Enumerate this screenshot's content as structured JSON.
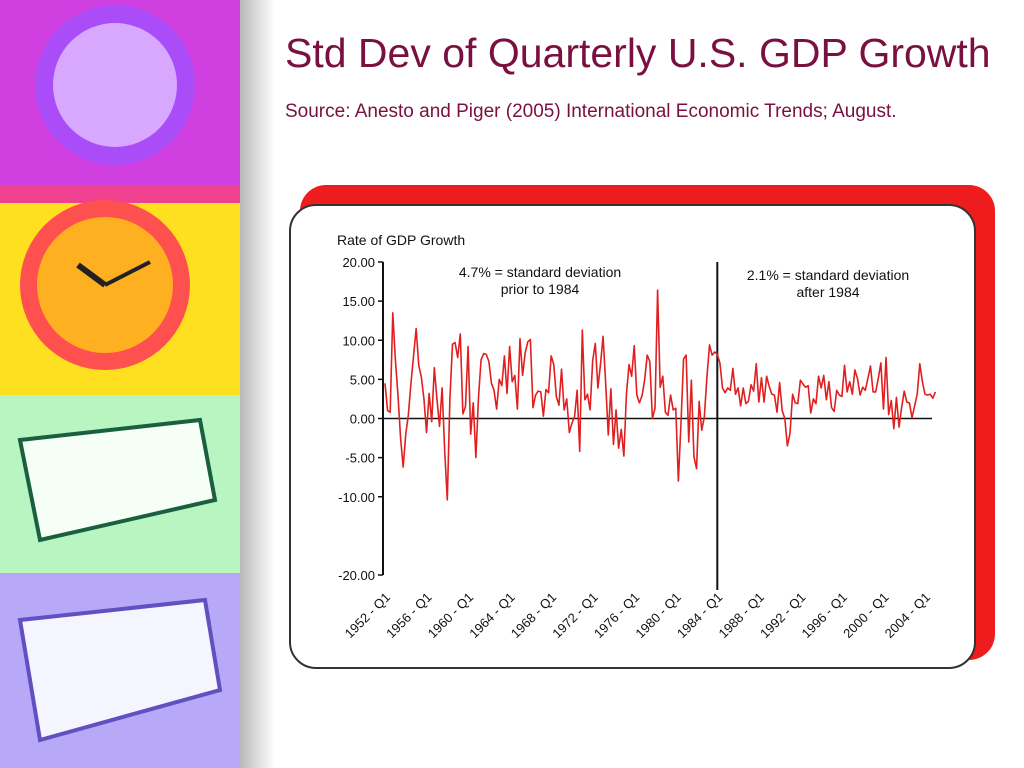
{
  "slide": {
    "title": "Std Dev of Quarterly U.S. GDP Growth",
    "source": "Source: Anesto and Piger (2005) International Economic Trends; August."
  },
  "chart_data": {
    "type": "line",
    "y_label": "Rate of GDP Growth",
    "annotations": [
      [
        "4.7% = standard deviation",
        "prior to 1984"
      ],
      [
        "2.1% = standard deviation",
        "after 1984"
      ]
    ],
    "categories": [
      "1952 - Q1",
      null,
      null,
      null,
      null,
      null,
      null,
      null,
      null,
      null,
      null,
      null,
      null,
      null,
      null,
      null,
      "1956 - Q1",
      null,
      null,
      null,
      null,
      null,
      null,
      null,
      null,
      null,
      null,
      null,
      null,
      null,
      null,
      null,
      "1960 - Q1",
      null,
      null,
      null,
      null,
      null,
      null,
      null,
      null,
      null,
      null,
      null,
      null,
      null,
      null,
      null,
      "1964 - Q1",
      null,
      null,
      null,
      null,
      null,
      null,
      null,
      null,
      null,
      null,
      null,
      null,
      null,
      null,
      null,
      "1968 - Q1",
      null,
      null,
      null,
      null,
      null,
      null,
      null,
      null,
      null,
      null,
      null,
      null,
      null,
      null,
      null,
      "1972 - Q1",
      null,
      null,
      null,
      null,
      null,
      null,
      null,
      null,
      null,
      null,
      null,
      null,
      null,
      null,
      null,
      "1976 - Q1",
      null,
      null,
      null,
      null,
      null,
      null,
      null,
      null,
      null,
      null,
      null,
      null,
      null,
      null,
      null,
      "1980 - Q1",
      null,
      null,
      null,
      null,
      null,
      null,
      null,
      null,
      null,
      null,
      null,
      null,
      null,
      null,
      null,
      "1984 - Q1",
      null,
      null,
      null,
      null,
      null,
      null,
      null,
      null,
      null,
      null,
      null,
      null,
      null,
      null,
      null,
      "1988 - Q1",
      null,
      null,
      null,
      null,
      null,
      null,
      null,
      null,
      null,
      null,
      null,
      null,
      null,
      null,
      null,
      "1992 - Q1",
      null,
      null,
      null,
      null,
      null,
      null,
      null,
      null,
      null,
      null,
      null,
      null,
      null,
      null,
      null,
      "1996 - Q1",
      null,
      null,
      null,
      null,
      null,
      null,
      null,
      null,
      null,
      null,
      null,
      null,
      null,
      null,
      null,
      "2000 - Q1",
      null,
      null,
      null,
      null,
      null,
      null,
      null,
      null,
      null,
      null,
      null,
      null,
      null,
      null,
      null,
      "2004 - Q1",
      null,
      null,
      null,
      null
    ],
    "series": [
      {
        "name": "GDP growth",
        "color": "#e02020",
        "values": [
          4.5,
          1.0,
          0.8,
          13.5,
          7.5,
          3.0,
          -2.5,
          -6.2,
          -2.0,
          0.5,
          4.5,
          8.0,
          11.5,
          6.8,
          5.3,
          2.5,
          -1.8,
          3.2,
          -0.4,
          6.5,
          2.5,
          -1.0,
          3.9,
          -4.2,
          -10.4,
          2.5,
          9.5,
          9.7,
          7.8,
          10.8,
          0.6,
          1.5,
          9.2,
          -2.0,
          2.0,
          -5.0,
          2.6,
          7.5,
          8.3,
          8.2,
          7.3,
          4.5,
          3.6,
          1.2,
          5.0,
          4.2,
          8.0,
          3.2,
          9.2,
          4.7,
          5.5,
          1.2,
          10.2,
          5.5,
          8.4,
          9.8,
          10.1,
          1.4,
          3.0,
          3.5,
          3.4,
          0.3,
          3.7,
          3.3,
          8.0,
          6.9,
          2.8,
          1.7,
          6.3,
          1.1,
          2.5,
          -1.8,
          -0.6,
          0.2,
          3.6,
          -4.2,
          11.3,
          2.4,
          3.1,
          1.1,
          7.4,
          9.6,
          3.9,
          6.9,
          10.5,
          4.5,
          -2.1,
          3.8,
          -3.3,
          1.1,
          -3.8,
          -1.4,
          -4.8,
          3.1,
          6.9,
          5.4,
          9.3,
          3.0,
          2.0,
          2.9,
          4.9,
          8.1,
          7.3,
          0.0,
          1.3,
          16.4,
          4.0,
          5.4,
          0.8,
          0.4,
          3.0,
          1.1,
          1.3,
          -8.0,
          -0.7,
          7.6,
          8.1,
          -3.0,
          4.9,
          -4.9,
          -6.4,
          2.2,
          -1.5,
          0.2,
          5.3,
          9.4,
          8.1,
          8.5,
          8.2,
          7.1,
          3.9,
          3.3,
          3.9,
          3.6,
          6.4,
          3.1,
          3.9,
          1.6,
          3.9,
          1.9,
          2.2,
          4.3,
          3.5,
          7.0,
          2.1,
          5.2,
          2.1,
          5.4,
          4.1,
          3.1,
          3.0,
          0.8,
          4.6,
          1.0,
          0.0,
          -3.5,
          -1.9,
          3.1,
          2.0,
          1.9,
          4.9,
          4.4,
          4.0,
          4.2,
          0.7,
          2.5,
          1.9,
          5.4,
          3.9,
          5.5,
          2.4,
          4.7,
          1.4,
          0.9,
          3.6,
          3.0,
          2.8,
          6.8,
          3.4,
          4.7,
          3.1,
          6.2,
          5.1,
          3.0,
          4.0,
          3.6,
          5.1,
          6.7,
          3.4,
          3.4,
          5.1,
          7.1,
          1.2,
          7.8,
          0.5,
          2.3,
          -1.3,
          2.7,
          -1.1,
          1.4,
          3.5,
          2.1,
          2.0,
          0.1,
          1.6,
          3.1,
          7.0,
          4.7,
          3.1,
          3.0,
          3.1,
          2.6,
          3.4
        ]
      }
    ],
    "ylim": [
      -20,
      20
    ],
    "yticks": [
      {
        "value": 20,
        "label": "20.00"
      },
      {
        "value": 15,
        "label": "15.00"
      },
      {
        "value": 10,
        "label": "10.00"
      },
      {
        "value": 5,
        "label": "5.00"
      },
      {
        "value": 0,
        "label": "0.00"
      },
      {
        "value": -5,
        "label": "-5.00"
      },
      {
        "value": -10,
        "label": "-10.00"
      },
      {
        "value": -20,
        "label": "-20.00"
      }
    ],
    "grid": false
  }
}
